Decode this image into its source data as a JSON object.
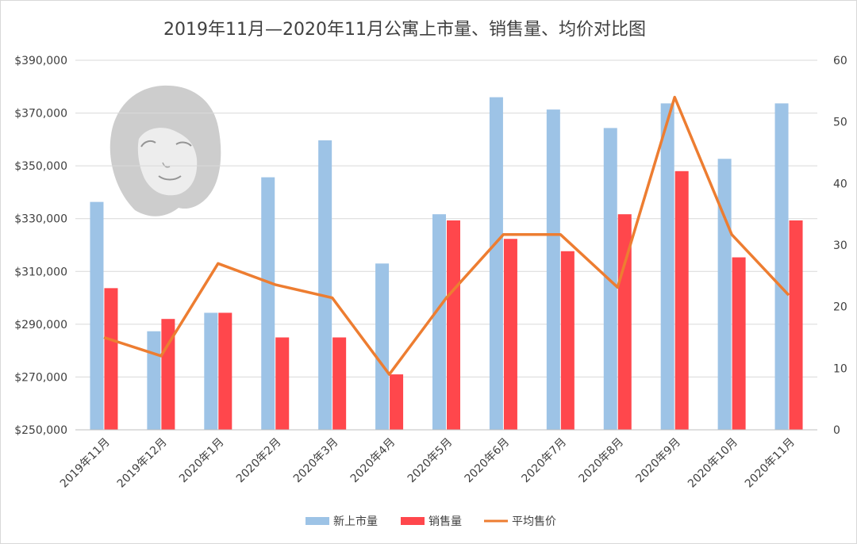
{
  "chart_data": {
    "type": "bar",
    "title": "2019年11月—2020年11月公寓上市量、销售量、均价对比图",
    "categories": [
      "2019年11月",
      "2019年12月",
      "2020年1月",
      "2020年2月",
      "2020年3月",
      "2020年4月",
      "2020年5月",
      "2020年6月",
      "2020年7月",
      "2020年8月",
      "2020年9月",
      "2020年10月",
      "2020年11月"
    ],
    "y_left": {
      "min": 250000,
      "max": 390000,
      "step": 20000,
      "tick_labels": [
        "$250,000",
        "$270,000",
        "$290,000",
        "$310,000",
        "$330,000",
        "$350,000",
        "$370,000",
        "$390,000"
      ]
    },
    "y_right": {
      "min": 0,
      "max": 60,
      "step": 10,
      "tick_labels": [
        "0",
        "10",
        "20",
        "30",
        "40",
        "50",
        "60"
      ]
    },
    "grid": true,
    "legend_position": "bottom",
    "series": [
      {
        "name": "新上市量",
        "type": "bar",
        "axis": "right",
        "color": "#9dc3e6",
        "values": [
          37,
          16,
          19,
          41,
          47,
          27,
          35,
          54,
          52,
          49,
          53,
          44,
          53
        ]
      },
      {
        "name": "销售量",
        "type": "bar",
        "axis": "right",
        "color": "#ff474c",
        "values": [
          23,
          18,
          19,
          15,
          15,
          9,
          34,
          31,
          29,
          35,
          42,
          28,
          34
        ]
      },
      {
        "name": "平均售价",
        "type": "line",
        "axis": "left",
        "color": "#ed7d31",
        "values": [
          285000,
          278000,
          313000,
          305000,
          300000,
          271000,
          300000,
          324000,
          324000,
          304000,
          376000,
          324000,
          301000
        ]
      }
    ]
  }
}
